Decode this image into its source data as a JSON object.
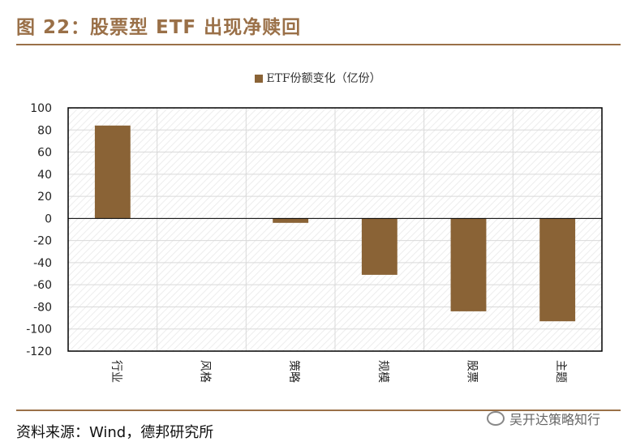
{
  "figure_title": "图 22：股票型 ETF 出现净赎回",
  "source_note": "资料来源：Wind，德邦研究所",
  "watermark": {
    "text": "吴开达策略知行",
    "icon": "wechat-icon"
  },
  "colors": {
    "accent": "#9a7048",
    "bar": "#8a6336"
  },
  "chart_data": {
    "type": "bar",
    "categories": [
      "行业",
      "风格",
      "策略",
      "规模",
      "股票",
      "主题"
    ],
    "series": [
      {
        "name": "ETF份额变化（亿份）",
        "values": [
          84,
          0,
          -4,
          -51,
          -84,
          -93
        ]
      }
    ],
    "ylim": [
      -120,
      100
    ],
    "yticks": [
      100,
      80,
      60,
      40,
      20,
      0,
      -20,
      -40,
      -60,
      -80,
      -100,
      -120
    ],
    "grid": true,
    "legend_position": "top-center",
    "xlabel": "",
    "ylabel": ""
  }
}
